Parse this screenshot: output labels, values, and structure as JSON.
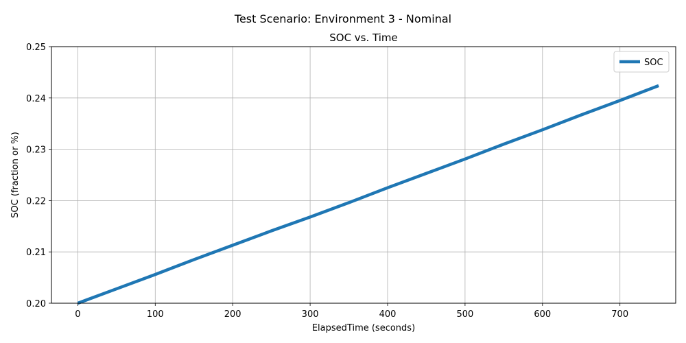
{
  "figure": {
    "suptitle": "Test Scenario: Environment 3 - Nominal"
  },
  "chart_data": {
    "type": "line",
    "title": "SOC vs. Time",
    "xlabel": "ElapsedTime (seconds)",
    "ylabel": "SOC (fraction or %)",
    "xlim": [
      -34,
      772
    ],
    "ylim": [
      0.2,
      0.25
    ],
    "xticks": [
      0,
      100,
      200,
      300,
      400,
      500,
      600,
      700
    ],
    "yticks": [
      0.2,
      0.21,
      0.22,
      0.23,
      0.24,
      0.25
    ],
    "xtick_labels": [
      "0",
      "100",
      "200",
      "300",
      "400",
      "500",
      "600",
      "700"
    ],
    "ytick_labels": [
      "0.20",
      "0.21",
      "0.22",
      "0.23",
      "0.24",
      "0.25"
    ],
    "grid": true,
    "legend": {
      "position": "top-right"
    },
    "series": [
      {
        "name": "SOC",
        "color": "#1f77b4",
        "x": [
          0,
          50,
          100,
          150,
          200,
          250,
          300,
          350,
          400,
          450,
          500,
          550,
          600,
          650,
          700,
          750
        ],
        "y": [
          0.2,
          0.2028,
          0.2056,
          0.2085,
          0.2113,
          0.2141,
          0.2168,
          0.2196,
          0.2225,
          0.2253,
          0.2281,
          0.231,
          0.2338,
          0.2367,
          0.2395,
          0.2424
        ]
      }
    ]
  }
}
